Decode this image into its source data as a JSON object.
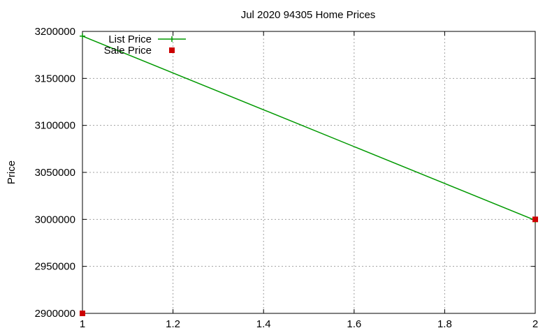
{
  "chart_data": {
    "type": "line",
    "title": "Jul 2020 94305 Home Prices",
    "xlabel": "",
    "ylabel": "Price",
    "xlim": [
      1,
      2
    ],
    "ylim": [
      2900000,
      3200000
    ],
    "x_ticks": [
      "1",
      "1.2",
      "1.4",
      "1.6",
      "1.8",
      "2"
    ],
    "y_ticks": [
      "2900000",
      "2950000",
      "3000000",
      "3050000",
      "3100000",
      "3150000",
      "3200000"
    ],
    "grid": true,
    "legend_position": "top-left",
    "series": [
      {
        "name": "List Price",
        "style": "linespoints",
        "color": "#009900",
        "points": [
          {
            "x": 1,
            "y": 3195000
          },
          {
            "x": 2,
            "y": 2999000
          }
        ]
      },
      {
        "name": "Sale Price",
        "style": "points",
        "color": "#cc0000",
        "points": [
          {
            "x": 1,
            "y": 2900000
          },
          {
            "x": 2,
            "y": 3000000
          }
        ]
      }
    ]
  }
}
